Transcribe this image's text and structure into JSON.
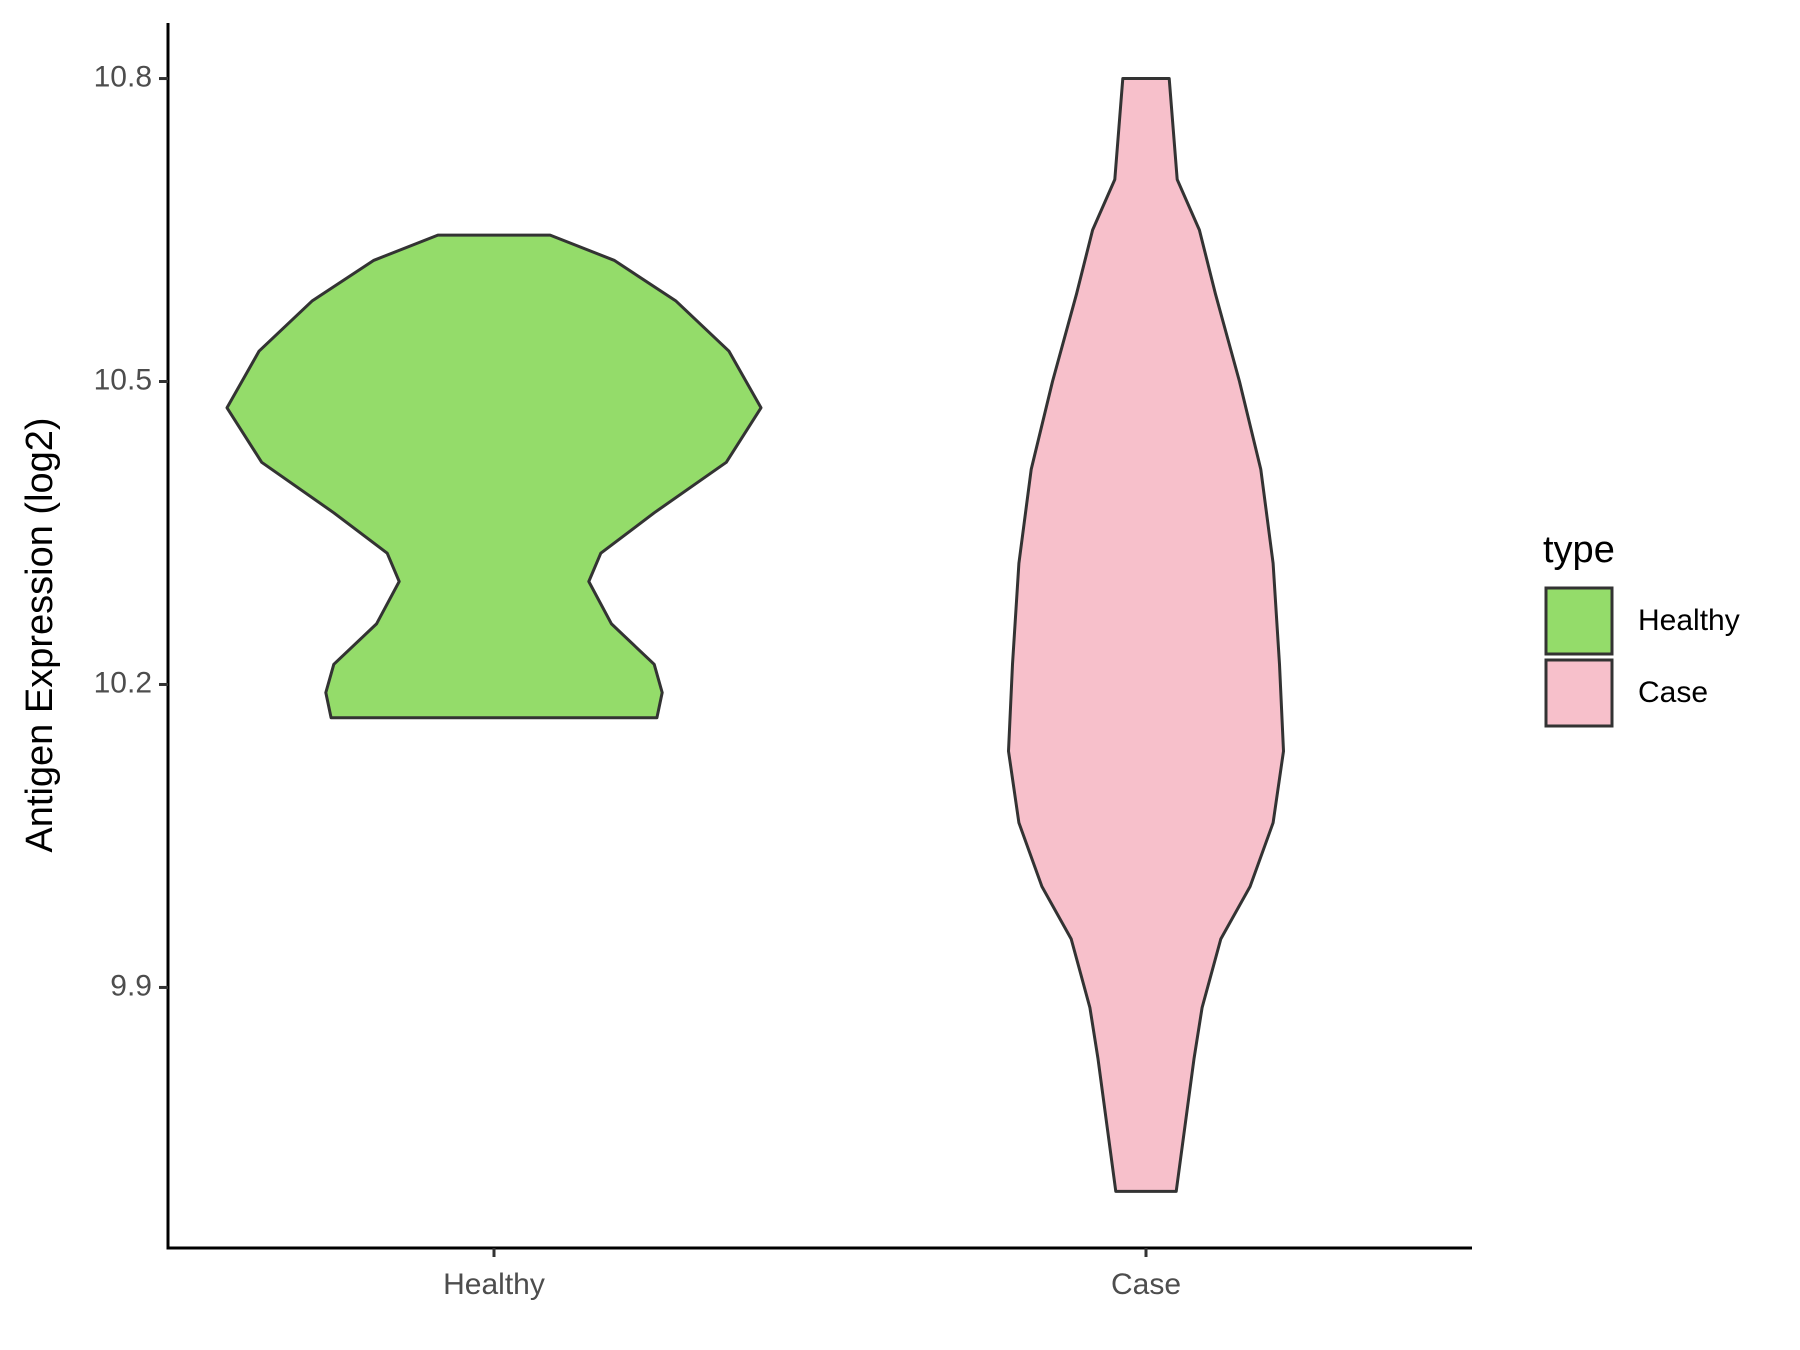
{
  "chart_data": {
    "type": "violin",
    "y_label": "Antigen Expression (log2)",
    "categories": [
      "Healthy",
      "Case"
    ],
    "legend_title": "type",
    "legend": "right",
    "ylim": [
      9.642,
      10.855
    ],
    "yticks": [
      9.9,
      10.2,
      10.5,
      10.8
    ],
    "series": [
      {
        "name": "Healthy",
        "color": "#94dc6a",
        "y": [
          10.645,
          10.62,
          10.58,
          10.53,
          10.474,
          10.42,
          10.37,
          10.33,
          10.302,
          10.26,
          10.22,
          10.192,
          10.167
        ],
        "density": [
          0.21,
          0.45,
          0.68,
          0.88,
          1.0,
          0.87,
          0.6,
          0.4,
          0.355,
          0.44,
          0.6,
          0.63,
          0.61
        ]
      },
      {
        "name": "Case",
        "color": "#f7c0cb",
        "y": [
          10.8,
          10.7,
          10.65,
          10.587,
          10.5,
          10.413,
          10.32,
          10.22,
          10.134,
          10.063,
          10.0,
          9.948,
          9.88,
          9.83,
          9.698
        ],
        "density": [
          0.087,
          0.117,
          0.2,
          0.26,
          0.35,
          0.43,
          0.476,
          0.5,
          0.515,
          0.476,
          0.39,
          0.28,
          0.21,
          0.18,
          0.113
        ]
      }
    ]
  }
}
